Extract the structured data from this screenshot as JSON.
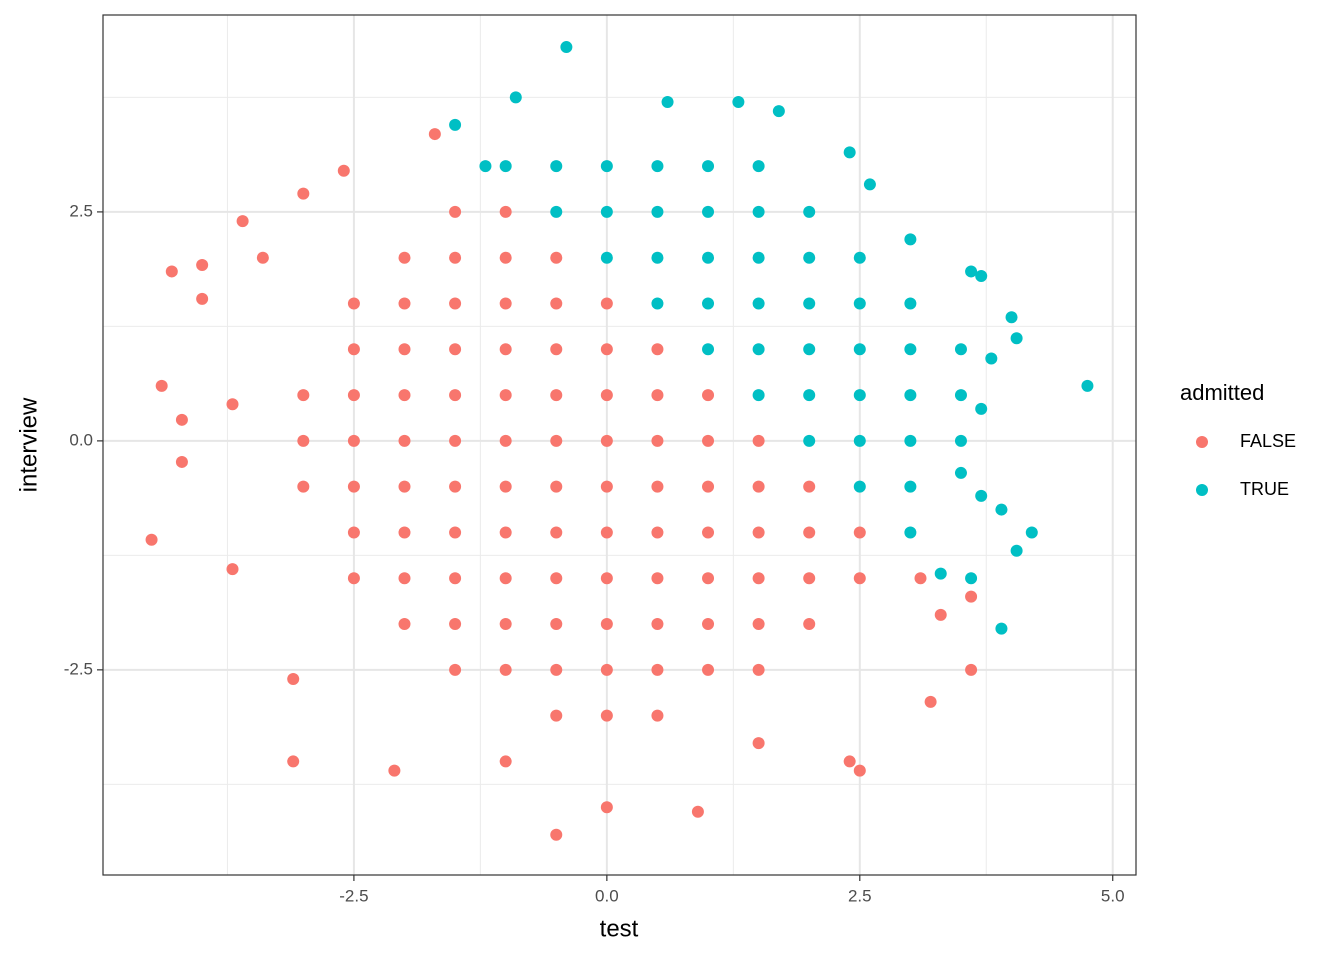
{
  "chart_data": {
    "type": "scatter",
    "x_label": "test",
    "y_label": "interview",
    "legend_title": "admitted",
    "legend_position": "right",
    "xlim": [
      -4.98,
      5.23
    ],
    "ylim": [
      -4.74,
      4.65
    ],
    "xticks": [
      -2.5,
      {
        "value": 0,
        "label": "0.0"
      },
      2.5,
      {
        "value": 5,
        "label": "5.0"
      }
    ],
    "yticks": [
      -2.5,
      {
        "value": 0,
        "label": "0.0"
      },
      2.5
    ],
    "x_minor_ticks": [
      -3.75,
      -1.25,
      1.25,
      3.75
    ],
    "y_minor_ticks": [
      -3.75,
      -1.25,
      1.25,
      3.75
    ],
    "grid": true,
    "series": [
      {
        "name": "FALSE",
        "color": "#F8766D",
        "x": [
          -3,
          -3,
          -3,
          -2.5,
          -2.5,
          -2.5,
          -2.5,
          -2.5,
          -2.5,
          -2.5,
          -2,
          -2,
          -2,
          -2,
          -2,
          -2,
          -2,
          -2,
          -2,
          -1.5,
          -1.5,
          -1.5,
          -1.5,
          -1.5,
          -1.5,
          -1.5,
          -1.5,
          -1.5,
          -1.5,
          -1.5,
          -1,
          -1,
          -1,
          -1,
          -1,
          -1,
          -1,
          -1,
          -1,
          -1,
          -1,
          -0.5,
          -0.5,
          -0.5,
          -0.5,
          -0.5,
          -0.5,
          -0.5,
          -0.5,
          -0.5,
          -0.5,
          -0.5,
          0,
          0,
          0,
          0,
          0,
          0,
          0,
          0,
          0,
          0,
          0.5,
          0.5,
          0.5,
          0.5,
          0.5,
          0.5,
          0.5,
          0.5,
          0.5,
          1,
          1,
          1,
          1,
          1,
          1,
          1,
          1.5,
          1.5,
          1.5,
          1.5,
          1.5,
          1.5,
          2,
          2,
          2,
          2,
          2.5,
          2.5,
          -4.5,
          -4.3,
          -4,
          -4,
          -4.4,
          -4.2,
          -4.2,
          -3.6,
          -3.4,
          -3,
          -3.1,
          -2.1,
          -0.5,
          0.9,
          0,
          2.4,
          2.5,
          3.2,
          3.6,
          3.6,
          3.3,
          3.1,
          -1.7,
          -2.6,
          -3.7,
          -3.7,
          -3.1,
          1.5,
          -1
        ],
        "values": [
          -0.5,
          0,
          0.5,
          -1.5,
          -1,
          -0.5,
          0,
          0.5,
          1,
          1.5,
          -2,
          -1.5,
          -1,
          -0.5,
          0,
          0.5,
          1,
          1.5,
          2,
          -2.5,
          -2,
          -1.5,
          -1,
          -0.5,
          0,
          0.5,
          1,
          1.5,
          2,
          2.5,
          -2.5,
          -2,
          -1.5,
          -1,
          -0.5,
          0,
          0.5,
          1,
          1.5,
          2,
          2.5,
          -3,
          -2.5,
          -2,
          -1.5,
          -1,
          -0.5,
          0,
          0.5,
          1,
          1.5,
          2,
          -3,
          -2.5,
          -2,
          -1.5,
          -1,
          -0.5,
          0,
          0.5,
          1,
          1.5,
          -3,
          -2.5,
          -2,
          -1.5,
          -1,
          -0.5,
          0,
          0.5,
          1,
          -2.5,
          -2,
          -1.5,
          -1,
          -0.5,
          0,
          0.5,
          -2.5,
          -2,
          -1.5,
          -1,
          -0.5,
          0,
          -2,
          -1.5,
          -1,
          -0.5,
          -1.5,
          -1,
          -1.08,
          1.85,
          1.92,
          1.55,
          0.6,
          0.23,
          -0.23,
          2.4,
          2,
          2.7,
          -3.5,
          -3.6,
          -4.3,
          -4.05,
          -4,
          -3.5,
          -3.6,
          -2.85,
          -2.5,
          -1.7,
          -1.9,
          -1.5,
          3.35,
          2.95,
          -1.4,
          0.4,
          -2.6,
          -3.3,
          -3.5
        ]
      },
      {
        "name": "TRUE",
        "color": "#00BFC4",
        "x": [
          -1,
          -0.5,
          -0.5,
          0,
          0,
          0,
          0.5,
          0.5,
          0.5,
          0.5,
          1,
          1,
          1,
          1,
          1,
          1.5,
          1.5,
          1.5,
          1.5,
          1.5,
          1.5,
          2,
          2,
          2,
          2,
          2,
          2,
          2.5,
          2.5,
          2.5,
          2.5,
          2.5,
          2.5,
          3,
          3,
          3,
          3,
          3,
          3,
          3.5,
          3.5,
          3.5,
          -0.4,
          -0.9,
          0.6,
          1.3,
          1.7,
          2.4,
          2.6,
          3,
          3.6,
          3.7,
          4,
          4.05,
          4.75,
          3.8,
          3.7,
          4.2,
          4.05,
          3.9,
          3.7,
          3.6,
          3.9,
          3.3,
          -1.5,
          -1.2,
          3.5
        ],
        "values": [
          3,
          2.5,
          3,
          2,
          2.5,
          3,
          1.5,
          2,
          2.5,
          3,
          1,
          1.5,
          2,
          2.5,
          3,
          0.5,
          1,
          1.5,
          2,
          2.5,
          3,
          0,
          0.5,
          1,
          1.5,
          2,
          2.5,
          -0.5,
          0,
          0.5,
          1,
          1.5,
          2,
          -1,
          -0.5,
          0,
          0.5,
          1,
          1.5,
          0,
          0.5,
          1,
          4.3,
          3.75,
          3.7,
          3.7,
          3.6,
          3.15,
          2.8,
          2.2,
          1.85,
          1.8,
          1.35,
          1.12,
          0.6,
          0.9,
          0.35,
          -1,
          -1.2,
          -0.75,
          -0.6,
          -1.5,
          -2.05,
          -1.45,
          3.45,
          3,
          -0.35
        ]
      }
    ]
  }
}
